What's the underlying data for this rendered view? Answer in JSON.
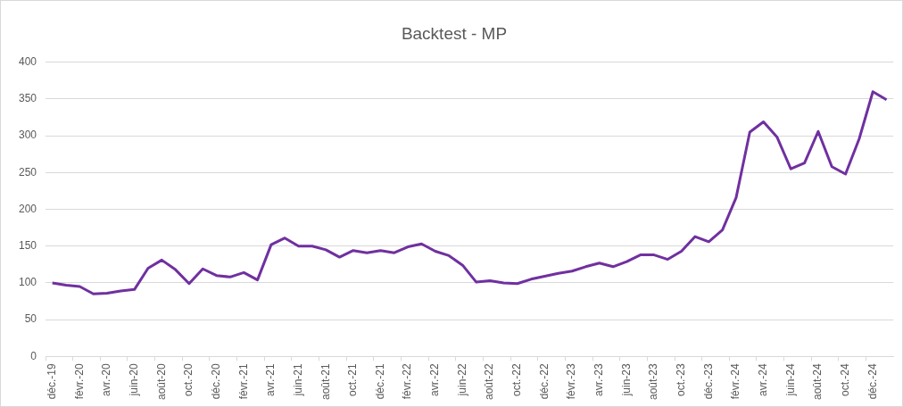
{
  "chart_data": {
    "type": "line",
    "title": "Backtest - MP",
    "categories": [
      "déc.-19",
      null,
      "févr.-20",
      null,
      "avr.-20",
      null,
      "juin-20",
      null,
      "août-20",
      null,
      "oct.-20",
      null,
      "déc.-20",
      null,
      "févr.-21",
      null,
      "avr.-21",
      null,
      "juin-21",
      null,
      "août-21",
      null,
      "oct.-21",
      null,
      "déc.-21",
      null,
      "févr.-22",
      null,
      "avr.-22",
      null,
      "juin-22",
      null,
      "août-22",
      null,
      "oct.-22",
      null,
      "déc.-22",
      null,
      "févr.-23",
      null,
      "avr.-23",
      null,
      "juin-23",
      null,
      "août-23",
      null,
      "oct.-23",
      null,
      "déc.-23",
      null,
      "févr.-24",
      null,
      "avr.-24",
      null,
      "juin-24",
      null,
      "août-24",
      null,
      "oct.-24",
      null,
      "déc.-24",
      null
    ],
    "series": [
      {
        "color": "#7030a0",
        "values": [
          100,
          97,
          95,
          85,
          86,
          89,
          91,
          120,
          131,
          118,
          99,
          119,
          110,
          108,
          114,
          104,
          152,
          161,
          150,
          150,
          145,
          135,
          144,
          141,
          144,
          141,
          149,
          153,
          143,
          137,
          124,
          101,
          103,
          100,
          99,
          105,
          109,
          113,
          116,
          122,
          127,
          122,
          129,
          138,
          138,
          132,
          143,
          163,
          156,
          172,
          216,
          305,
          319,
          298,
          255,
          263,
          306,
          258,
          248,
          296,
          360,
          349
        ]
      }
    ],
    "ylim": [
      0,
      400
    ],
    "yticks": [
      0,
      50,
      100,
      150,
      200,
      250,
      300,
      350,
      400
    ],
    "grid": "y",
    "legend": false,
    "marker": "none",
    "line_style": "solid"
  }
}
